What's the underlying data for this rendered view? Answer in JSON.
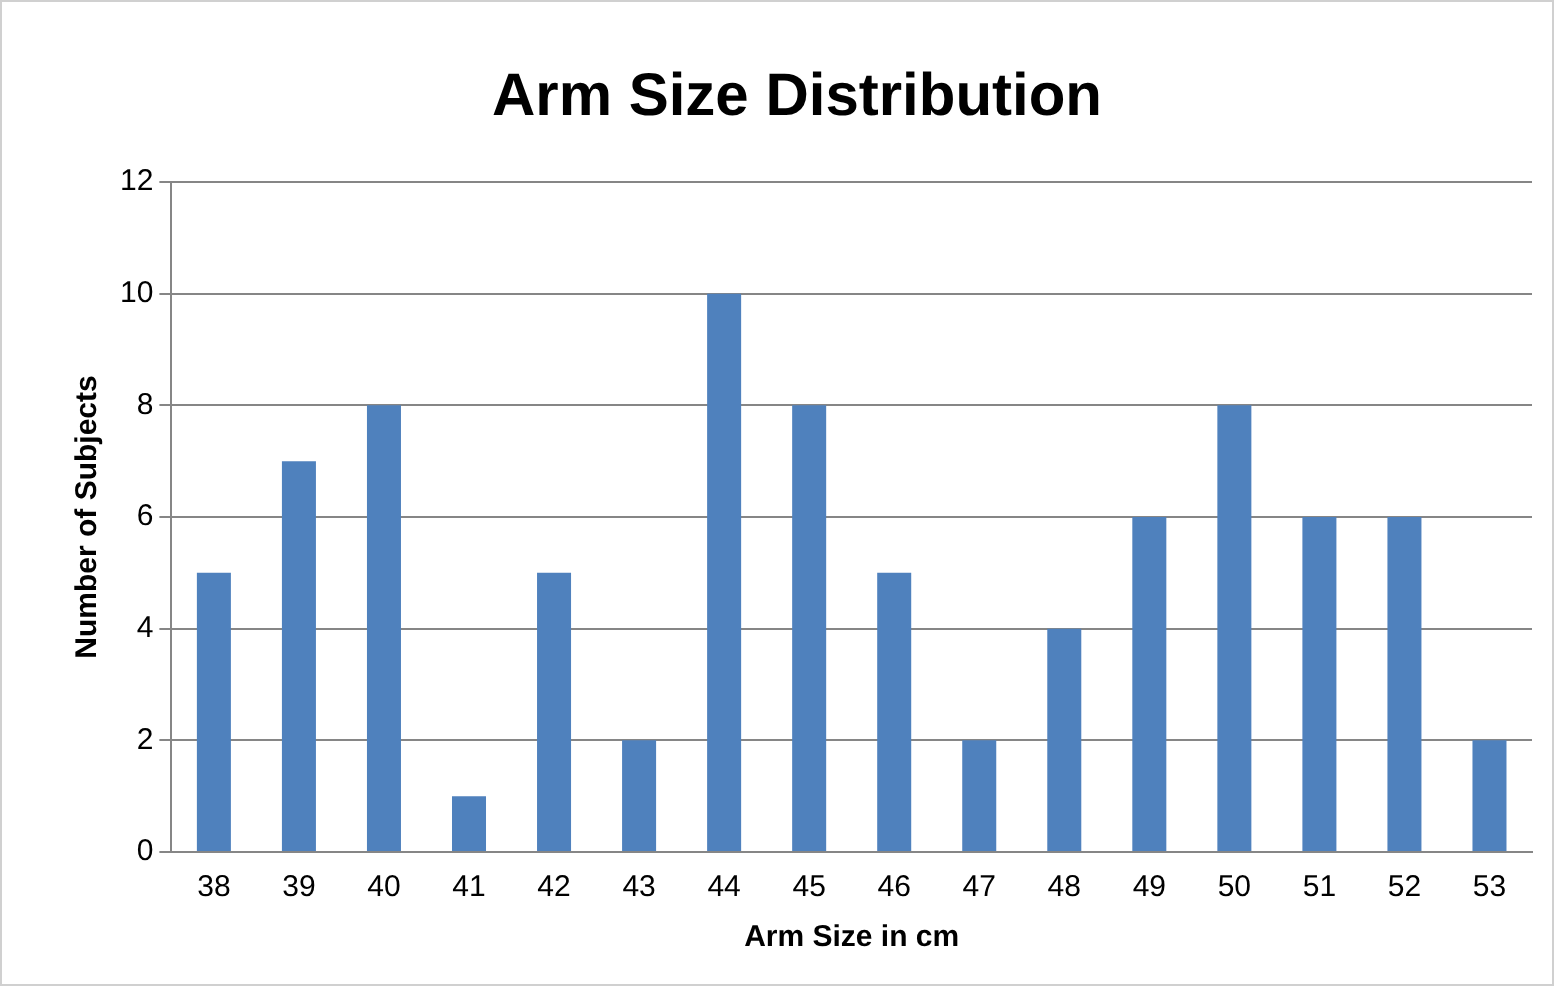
{
  "chart_data": {
    "type": "bar",
    "title": "Arm Size Distribution",
    "xlabel": "Arm Size in cm",
    "ylabel": "Number of Subjects",
    "categories": [
      "38",
      "39",
      "40",
      "41",
      "42",
      "43",
      "44",
      "45",
      "46",
      "47",
      "48",
      "49",
      "50",
      "51",
      "52",
      "53"
    ],
    "values": [
      5,
      7,
      8,
      1,
      5,
      2,
      10,
      8,
      5,
      2,
      4,
      6,
      8,
      6,
      6,
      2
    ],
    "color": "#4f81bd",
    "ylim": [
      0,
      12
    ],
    "yticks": [
      0,
      2,
      4,
      6,
      8,
      10,
      12
    ],
    "grid": "y",
    "legend": false
  }
}
